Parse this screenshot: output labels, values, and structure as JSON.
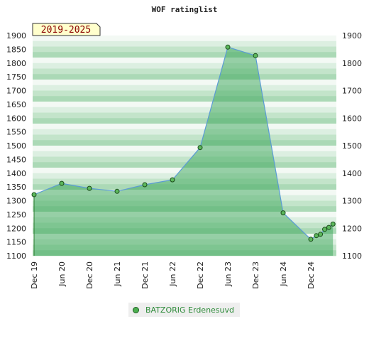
{
  "chart_data": {
    "type": "area",
    "title": "WOF ratinglist",
    "period_label": "2019-2025",
    "ylim": [
      1100,
      1900
    ],
    "yticks": [
      1100,
      1150,
      1200,
      1250,
      1300,
      1350,
      1400,
      1450,
      1500,
      1550,
      1600,
      1650,
      1700,
      1750,
      1800,
      1850,
      1900
    ],
    "yticks_right": [
      1100,
      1200,
      1300,
      1400,
      1500,
      1600,
      1700,
      1800,
      1900
    ],
    "xticks": [
      "Dec 19",
      "Jun 20",
      "Dec 20",
      "Jun 21",
      "Dec 21",
      "Jun 22",
      "Dec 22",
      "Jun 23",
      "Dec 23",
      "Jun 24",
      "Dec 24"
    ],
    "series": [
      {
        "name": "BATZORIG Erdenesuvd",
        "color": "#4caf50",
        "points": [
          {
            "x": 0,
            "y": 1322
          },
          {
            "x": 1,
            "y": 1363
          },
          {
            "x": 2,
            "y": 1345
          },
          {
            "x": 3,
            "y": 1334
          },
          {
            "x": 4,
            "y": 1358
          },
          {
            "x": 5,
            "y": 1376
          },
          {
            "x": 6,
            "y": 1493
          },
          {
            "x": 7,
            "y": 1858
          },
          {
            "x": 8,
            "y": 1827
          },
          {
            "x": 9,
            "y": 1256
          },
          {
            "x": 10,
            "y": 1160
          },
          {
            "x": 10.2,
            "y": 1173
          },
          {
            "x": 10.35,
            "y": 1178
          },
          {
            "x": 10.5,
            "y": 1196
          },
          {
            "x": 10.65,
            "y": 1203
          },
          {
            "x": 10.8,
            "y": 1215
          }
        ]
      }
    ]
  }
}
